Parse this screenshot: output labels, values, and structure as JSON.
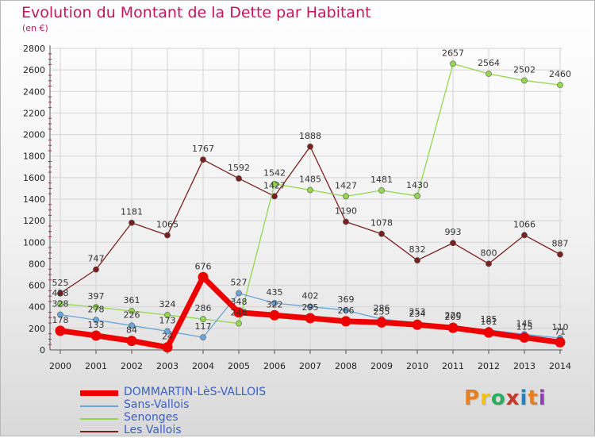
{
  "title": "Evolution du Montant de la Dette par Habitant",
  "subtitle": "(en €)",
  "logo": "Proxiti",
  "logo_colors": [
    "#e67e22",
    "#f1c40f",
    "#27ae60",
    "#c0392b",
    "#2980b9",
    "#e67e22",
    "#8e44ad"
  ],
  "chart_data": {
    "type": "line",
    "title": "Evolution du Montant de la Dette par Habitant",
    "subtitle": "(en €)",
    "x": [
      "2000",
      "2001",
      "2002",
      "2003",
      "2004",
      "2005",
      "2006",
      "2007",
      "2008",
      "2009",
      "2010",
      "2011",
      "2012",
      "2013",
      "2014"
    ],
    "ylim": [
      0,
      2800
    ],
    "yticks": [
      "0",
      "200",
      "400",
      "600",
      "800",
      "1000",
      "1200",
      "1400",
      "1600",
      "1800",
      "2000",
      "2200",
      "2400",
      "2600",
      "2800"
    ],
    "grid": true,
    "legend_position": "bottom-left",
    "series": [
      {
        "name": "DOMMARTIN-LèS-VALLOIS",
        "color": "#ee0000",
        "values": [
          178,
          133,
          84,
          24,
          676,
          348,
          322,
          295,
          266,
          255,
          234,
          205,
          161,
          115,
          71
        ],
        "labels": [
          "178",
          "133",
          "84",
          "24",
          "676",
          "348",
          "322",
          "295",
          "266",
          "255",
          "234",
          "205",
          "161",
          "115",
          "71"
        ]
      },
      {
        "name": "Sans-Vallois",
        "color": "#6aa4d8",
        "values": [
          328,
          278,
          226,
          173,
          117,
          527,
          435,
          402,
          369,
          286,
          253,
          220,
          185,
          145,
          110
        ],
        "labels": [
          "328",
          "278",
          "226",
          "173",
          "117",
          "527",
          "435",
          "402",
          "369",
          "286",
          "253",
          "220",
          "185",
          "145",
          "110"
        ]
      },
      {
        "name": "Senonges",
        "color": "#94d64f",
        "values": [
          428,
          397,
          361,
          324,
          286,
          246,
          1542,
          1485,
          1427,
          1481,
          1430,
          2657,
          2564,
          2502,
          2460
        ],
        "labels": [
          "428",
          "397",
          "361",
          "324",
          "286",
          "246",
          "1542",
          "1485",
          "1427",
          "1481",
          "1430",
          "2657",
          "2564",
          "2502",
          "2460"
        ]
      },
      {
        "name": "Les Vallois",
        "color": "#7a1f1f",
        "values": [
          525,
          747,
          1181,
          1065,
          1767,
          1592,
          1427,
          1888,
          1190,
          1078,
          832,
          993,
          800,
          1066,
          887
        ],
        "labels": [
          "525",
          "747",
          "1181",
          "1065",
          "1767",
          "1592",
          "1427",
          "1888",
          "1190",
          "1078",
          "832",
          "993",
          "800",
          "1066",
          "887"
        ]
      }
    ]
  }
}
